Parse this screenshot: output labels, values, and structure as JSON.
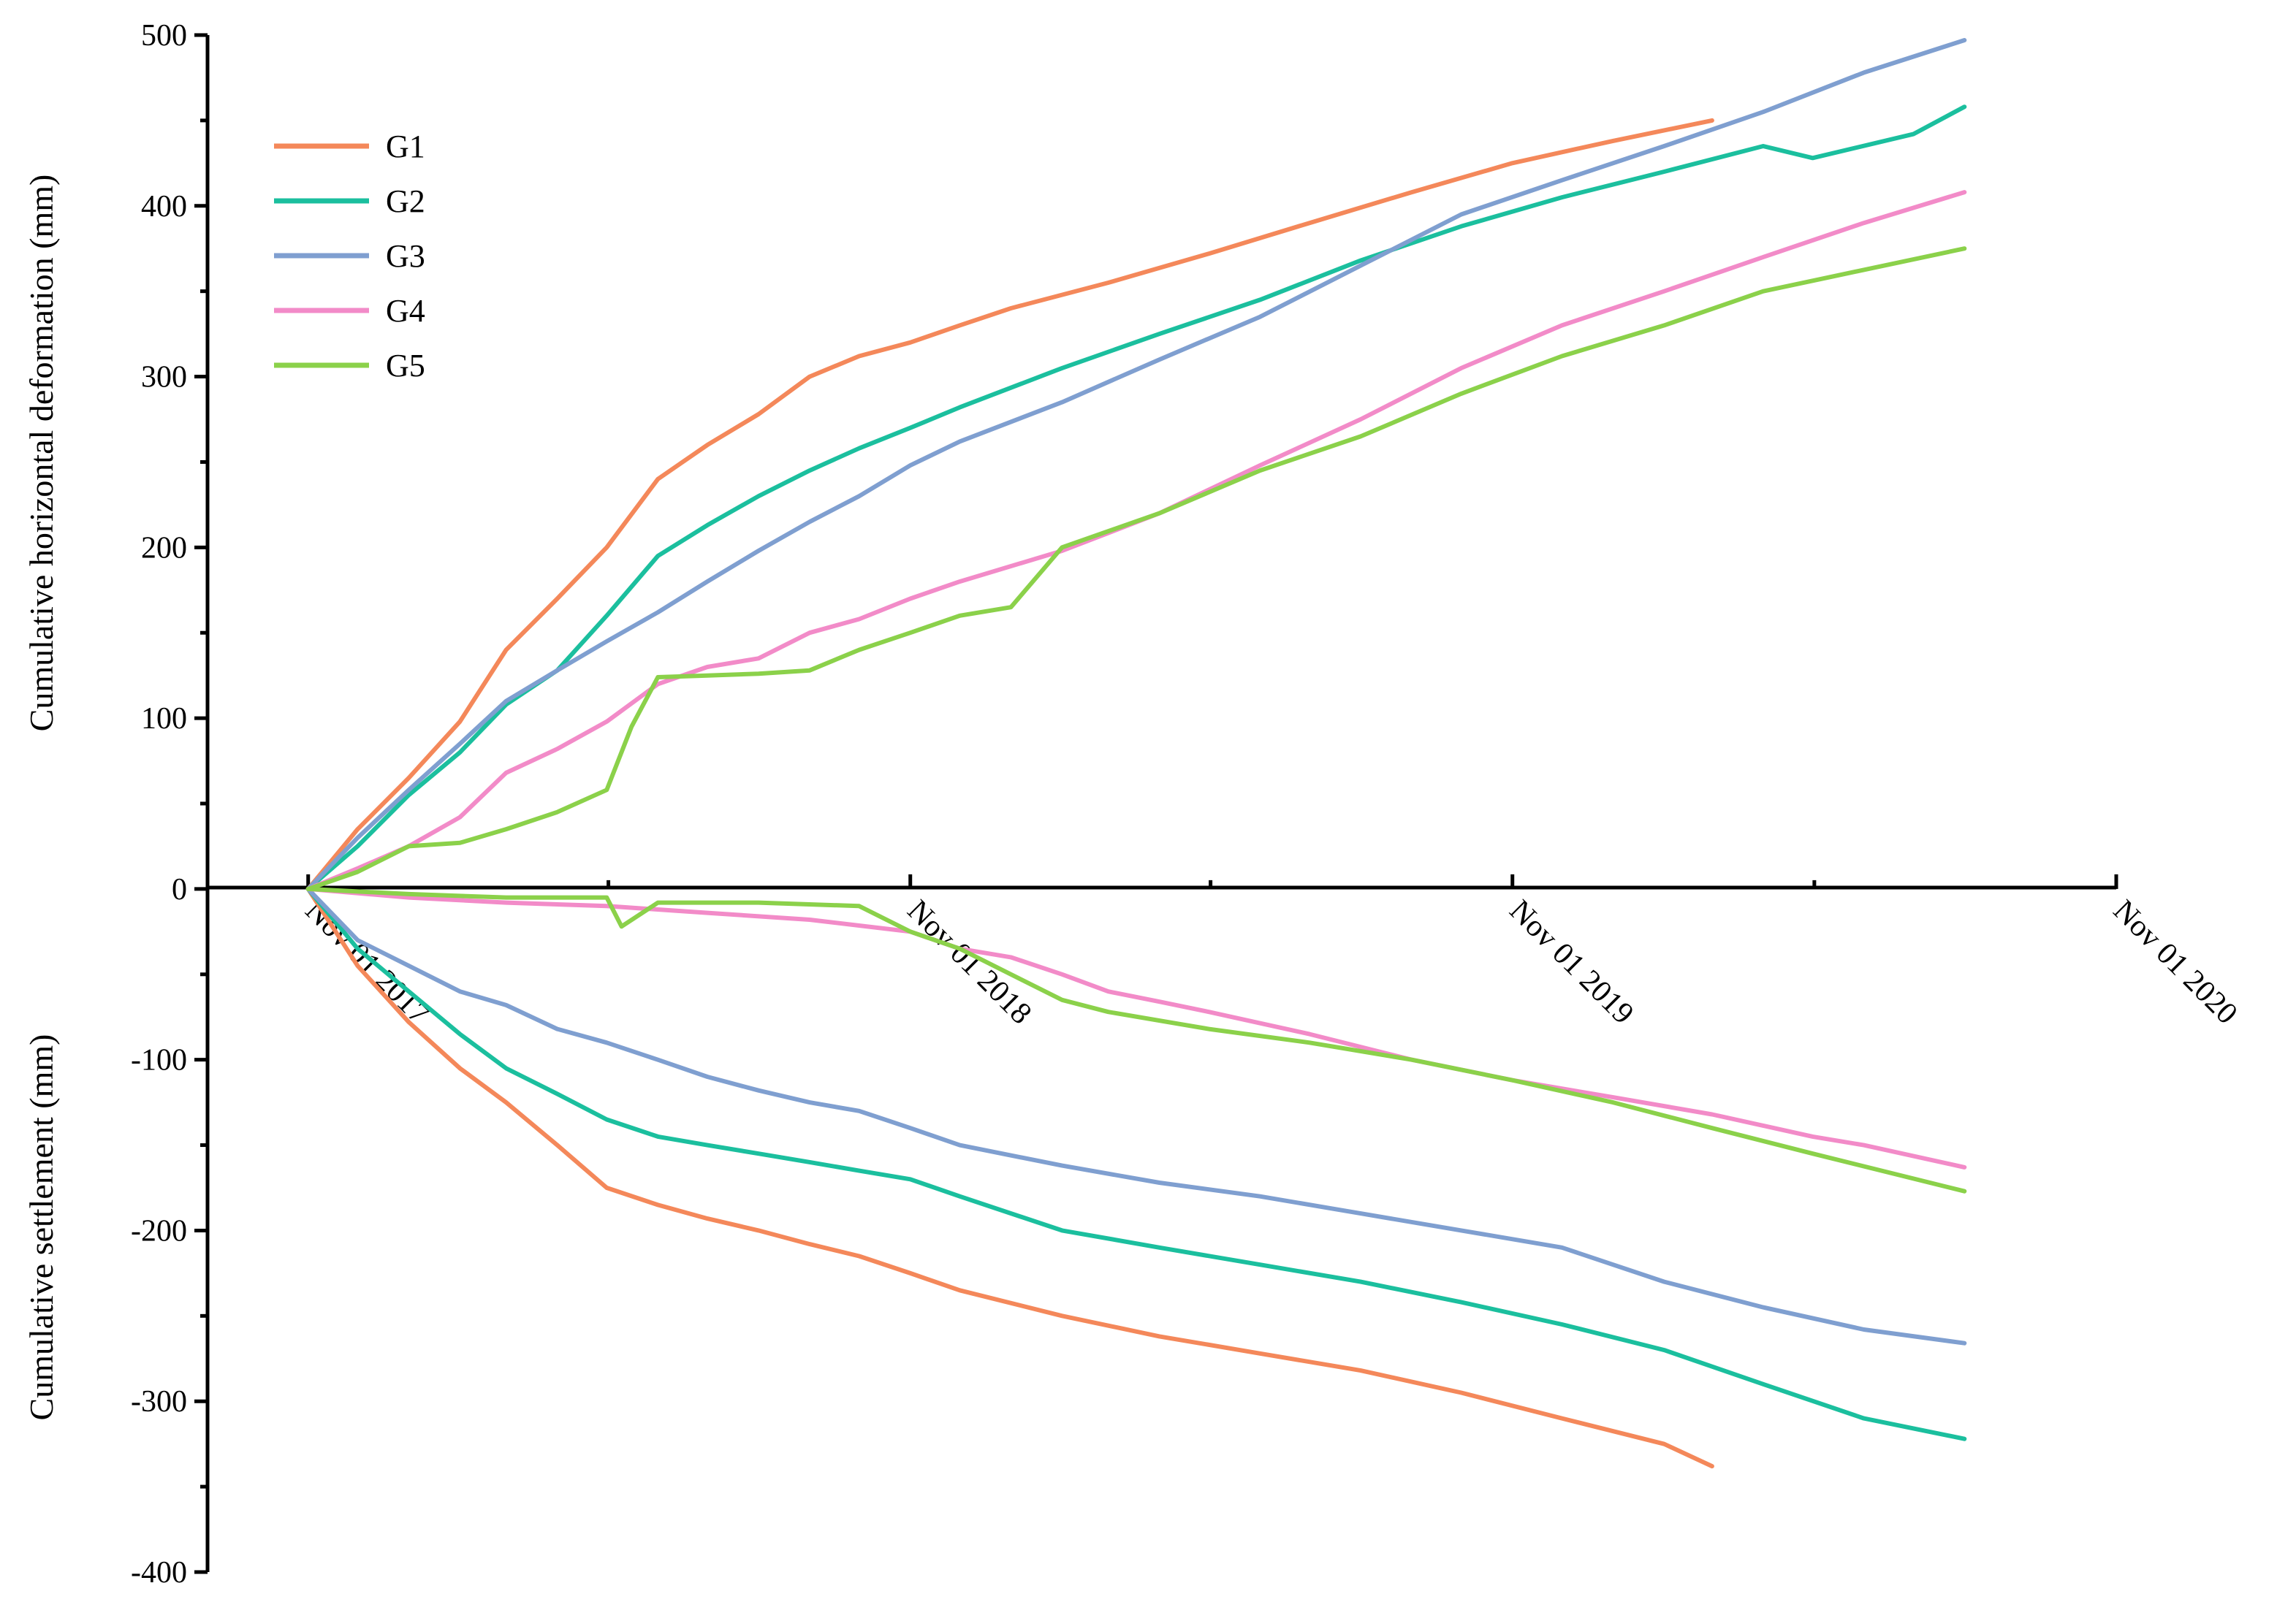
{
  "chart_data": {
    "type": "line",
    "x_unit": "date",
    "x_ticks": [
      "Nov 01 2017",
      "Nov 01 2018",
      "Nov 01 2019",
      "Nov 01 2020"
    ],
    "xlim": [
      "2017-09-01",
      "2020-11-01"
    ],
    "ylim": [
      -400,
      500
    ],
    "y_ticks": [
      -400,
      -300,
      -200,
      -100,
      0,
      100,
      200,
      300,
      400,
      500
    ],
    "ylabel_upper": "Cumulative horizontal deformation (mm)",
    "ylabel_lower": "Cumulative settlement (mm)",
    "legend_position": "top-left",
    "series": [
      {
        "name": "G1",
        "color": "#F4885A",
        "horizontal": [
          [
            "2017-11-01",
            0
          ],
          [
            "2017-12-01",
            35
          ],
          [
            "2018-01-01",
            65
          ],
          [
            "2018-02-01",
            98
          ],
          [
            "2018-03-01",
            140
          ],
          [
            "2018-04-01",
            170
          ],
          [
            "2018-05-01",
            200
          ],
          [
            "2018-06-01",
            240
          ],
          [
            "2018-07-01",
            260
          ],
          [
            "2018-08-01",
            278
          ],
          [
            "2018-09-01",
            300
          ],
          [
            "2018-10-01",
            312
          ],
          [
            "2018-11-01",
            320
          ],
          [
            "2018-12-01",
            330
          ],
          [
            "2019-01-01",
            340
          ],
          [
            "2019-03-01",
            355
          ],
          [
            "2019-05-01",
            372
          ],
          [
            "2019-07-01",
            390
          ],
          [
            "2019-09-01",
            408
          ],
          [
            "2019-11-01",
            425
          ],
          [
            "2020-01-01",
            438
          ],
          [
            "2020-03-01",
            450
          ]
        ],
        "settlement": [
          [
            "2017-11-01",
            0
          ],
          [
            "2017-12-01",
            -45
          ],
          [
            "2018-01-01",
            -78
          ],
          [
            "2018-02-01",
            -105
          ],
          [
            "2018-03-01",
            -125
          ],
          [
            "2018-04-01",
            -150
          ],
          [
            "2018-05-01",
            -175
          ],
          [
            "2018-06-01",
            -185
          ],
          [
            "2018-07-01",
            -193
          ],
          [
            "2018-08-01",
            -200
          ],
          [
            "2018-09-01",
            -208
          ],
          [
            "2018-10-01",
            -215
          ],
          [
            "2018-11-01",
            -225
          ],
          [
            "2018-12-01",
            -235
          ],
          [
            "2019-02-01",
            -250
          ],
          [
            "2019-04-01",
            -262
          ],
          [
            "2019-06-01",
            -272
          ],
          [
            "2019-08-01",
            -282
          ],
          [
            "2019-10-01",
            -295
          ],
          [
            "2019-12-01",
            -310
          ],
          [
            "2020-02-01",
            -325
          ],
          [
            "2020-03-01",
            -338
          ]
        ]
      },
      {
        "name": "G2",
        "color": "#1BBF9E",
        "horizontal": [
          [
            "2017-11-01",
            0
          ],
          [
            "2017-12-01",
            25
          ],
          [
            "2018-01-01",
            55
          ],
          [
            "2018-02-01",
            80
          ],
          [
            "2018-03-01",
            108
          ],
          [
            "2018-04-01",
            128
          ],
          [
            "2018-05-01",
            160
          ],
          [
            "2018-06-01",
            195
          ],
          [
            "2018-07-01",
            213
          ],
          [
            "2018-08-01",
            230
          ],
          [
            "2018-09-01",
            245
          ],
          [
            "2018-10-01",
            258
          ],
          [
            "2018-11-01",
            270
          ],
          [
            "2018-12-01",
            282
          ],
          [
            "2019-02-01",
            305
          ],
          [
            "2019-04-01",
            325
          ],
          [
            "2019-06-01",
            345
          ],
          [
            "2019-08-01",
            368
          ],
          [
            "2019-10-01",
            388
          ],
          [
            "2019-12-01",
            405
          ],
          [
            "2020-02-01",
            420
          ],
          [
            "2020-04-01",
            435
          ],
          [
            "2020-05-01",
            428
          ],
          [
            "2020-07-01",
            442
          ],
          [
            "2020-08-01",
            458
          ]
        ],
        "settlement": [
          [
            "2017-11-01",
            0
          ],
          [
            "2017-12-01",
            -35
          ],
          [
            "2018-01-01",
            -60
          ],
          [
            "2018-02-01",
            -85
          ],
          [
            "2018-03-01",
            -105
          ],
          [
            "2018-04-01",
            -120
          ],
          [
            "2018-05-01",
            -135
          ],
          [
            "2018-06-01",
            -145
          ],
          [
            "2018-07-01",
            -150
          ],
          [
            "2018-08-01",
            -155
          ],
          [
            "2018-09-01",
            -160
          ],
          [
            "2018-10-01",
            -165
          ],
          [
            "2018-11-01",
            -170
          ],
          [
            "2018-12-01",
            -180
          ],
          [
            "2019-02-01",
            -200
          ],
          [
            "2019-04-01",
            -210
          ],
          [
            "2019-06-01",
            -220
          ],
          [
            "2019-08-01",
            -230
          ],
          [
            "2019-10-01",
            -242
          ],
          [
            "2019-12-01",
            -255
          ],
          [
            "2020-02-01",
            -270
          ],
          [
            "2020-04-01",
            -290
          ],
          [
            "2020-06-01",
            -310
          ],
          [
            "2020-08-01",
            -322
          ]
        ]
      },
      {
        "name": "G3",
        "color": "#7F9FD0",
        "horizontal": [
          [
            "2017-11-01",
            0
          ],
          [
            "2017-12-01",
            30
          ],
          [
            "2018-01-01",
            58
          ],
          [
            "2018-02-01",
            85
          ],
          [
            "2018-03-01",
            110
          ],
          [
            "2018-04-01",
            128
          ],
          [
            "2018-05-01",
            145
          ],
          [
            "2018-06-01",
            162
          ],
          [
            "2018-07-01",
            180
          ],
          [
            "2018-08-01",
            198
          ],
          [
            "2018-09-01",
            215
          ],
          [
            "2018-10-01",
            230
          ],
          [
            "2018-11-01",
            248
          ],
          [
            "2018-12-01",
            262
          ],
          [
            "2019-02-01",
            285
          ],
          [
            "2019-04-01",
            310
          ],
          [
            "2019-06-01",
            335
          ],
          [
            "2019-08-01",
            365
          ],
          [
            "2019-10-01",
            395
          ],
          [
            "2019-12-01",
            415
          ],
          [
            "2020-02-01",
            435
          ],
          [
            "2020-04-01",
            455
          ],
          [
            "2020-06-01",
            478
          ],
          [
            "2020-08-01",
            497
          ]
        ],
        "settlement": [
          [
            "2017-11-01",
            0
          ],
          [
            "2017-12-01",
            -30
          ],
          [
            "2018-01-01",
            -45
          ],
          [
            "2018-02-01",
            -60
          ],
          [
            "2018-03-01",
            -68
          ],
          [
            "2018-04-01",
            -82
          ],
          [
            "2018-05-01",
            -90
          ],
          [
            "2018-06-01",
            -100
          ],
          [
            "2018-07-01",
            -110
          ],
          [
            "2018-08-01",
            -118
          ],
          [
            "2018-09-01",
            -125
          ],
          [
            "2018-10-01",
            -130
          ],
          [
            "2018-11-01",
            -140
          ],
          [
            "2018-12-01",
            -150
          ],
          [
            "2019-02-01",
            -162
          ],
          [
            "2019-04-01",
            -172
          ],
          [
            "2019-06-01",
            -180
          ],
          [
            "2019-08-01",
            -190
          ],
          [
            "2019-10-01",
            -200
          ],
          [
            "2019-12-01",
            -210
          ],
          [
            "2020-02-01",
            -230
          ],
          [
            "2020-04-01",
            -245
          ],
          [
            "2020-06-01",
            -258
          ],
          [
            "2020-08-01",
            -266
          ]
        ]
      },
      {
        "name": "G4",
        "color": "#F28BC8",
        "horizontal": [
          [
            "2017-11-01",
            0
          ],
          [
            "2017-12-01",
            12
          ],
          [
            "2018-01-01",
            25
          ],
          [
            "2018-02-01",
            42
          ],
          [
            "2018-03-01",
            68
          ],
          [
            "2018-04-01",
            82
          ],
          [
            "2018-05-01",
            98
          ],
          [
            "2018-06-01",
            120
          ],
          [
            "2018-07-01",
            130
          ],
          [
            "2018-08-01",
            135
          ],
          [
            "2018-09-01",
            150
          ],
          [
            "2018-10-01",
            158
          ],
          [
            "2018-11-01",
            170
          ],
          [
            "2018-12-01",
            180
          ],
          [
            "2019-02-01",
            198
          ],
          [
            "2019-04-01",
            220
          ],
          [
            "2019-06-01",
            248
          ],
          [
            "2019-08-01",
            275
          ],
          [
            "2019-10-01",
            305
          ],
          [
            "2019-12-01",
            330
          ],
          [
            "2020-02-01",
            350
          ],
          [
            "2020-04-01",
            370
          ],
          [
            "2020-06-01",
            390
          ],
          [
            "2020-08-01",
            408
          ]
        ],
        "settlement": [
          [
            "2017-11-01",
            0
          ],
          [
            "2018-01-01",
            -5
          ],
          [
            "2018-03-01",
            -8
          ],
          [
            "2018-05-01",
            -10
          ],
          [
            "2018-07-01",
            -14
          ],
          [
            "2018-09-01",
            -18
          ],
          [
            "2018-11-01",
            -25
          ],
          [
            "2018-12-01",
            -35
          ],
          [
            "2019-01-01",
            -40
          ],
          [
            "2019-02-01",
            -50
          ],
          [
            "2019-03-01",
            -60
          ],
          [
            "2019-04-01",
            -66
          ],
          [
            "2019-05-01",
            -72
          ],
          [
            "2019-07-01",
            -85
          ],
          [
            "2019-09-01",
            -100
          ],
          [
            "2019-11-01",
            -112
          ],
          [
            "2020-01-01",
            -122
          ],
          [
            "2020-03-01",
            -132
          ],
          [
            "2020-05-01",
            -145
          ],
          [
            "2020-06-01",
            -150
          ],
          [
            "2020-08-01",
            -163
          ]
        ]
      },
      {
        "name": "G5",
        "color": "#8BD14A",
        "horizontal": [
          [
            "2017-11-01",
            0
          ],
          [
            "2017-12-01",
            10
          ],
          [
            "2018-01-01",
            25
          ],
          [
            "2018-02-01",
            27
          ],
          [
            "2018-03-01",
            35
          ],
          [
            "2018-04-01",
            45
          ],
          [
            "2018-05-01",
            58
          ],
          [
            "2018-05-16",
            95
          ],
          [
            "2018-06-01",
            124
          ],
          [
            "2018-07-01",
            125
          ],
          [
            "2018-08-01",
            126
          ],
          [
            "2018-09-01",
            128
          ],
          [
            "2018-10-01",
            140
          ],
          [
            "2018-11-01",
            150
          ],
          [
            "2018-12-01",
            160
          ],
          [
            "2019-01-01",
            165
          ],
          [
            "2019-02-01",
            200
          ],
          [
            "2019-04-01",
            220
          ],
          [
            "2019-06-01",
            245
          ],
          [
            "2019-08-01",
            265
          ],
          [
            "2019-10-01",
            290
          ],
          [
            "2019-12-01",
            312
          ],
          [
            "2020-02-01",
            330
          ],
          [
            "2020-04-01",
            350
          ],
          [
            "2020-08-01",
            375
          ]
        ],
        "settlement": [
          [
            "2017-11-01",
            0
          ],
          [
            "2018-01-01",
            -3
          ],
          [
            "2018-03-01",
            -5
          ],
          [
            "2018-05-01",
            -5
          ],
          [
            "2018-05-10",
            -22
          ],
          [
            "2018-06-01",
            -8
          ],
          [
            "2018-08-01",
            -8
          ],
          [
            "2018-10-01",
            -10
          ],
          [
            "2018-11-01",
            -25
          ],
          [
            "2018-12-01",
            -35
          ],
          [
            "2019-01-01",
            -50
          ],
          [
            "2019-02-01",
            -65
          ],
          [
            "2019-03-01",
            -72
          ],
          [
            "2019-05-01",
            -82
          ],
          [
            "2019-07-01",
            -90
          ],
          [
            "2019-09-01",
            -100
          ],
          [
            "2019-11-01",
            -112
          ],
          [
            "2020-01-01",
            -125
          ],
          [
            "2020-03-01",
            -140
          ],
          [
            "2020-05-01",
            -155
          ],
          [
            "2020-08-01",
            -177
          ]
        ]
      }
    ]
  }
}
